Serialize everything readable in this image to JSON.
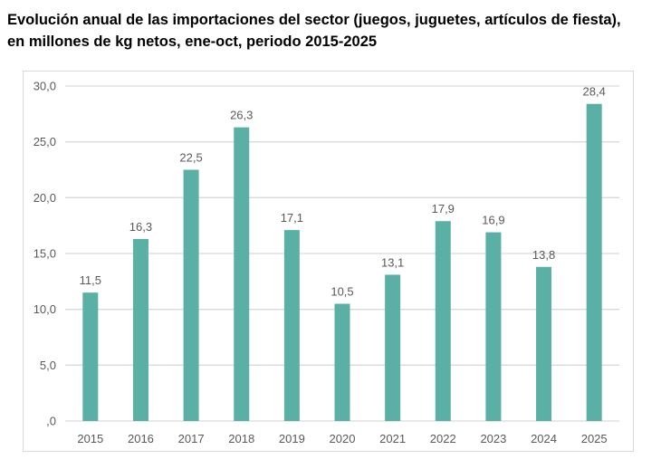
{
  "chart_data": {
    "type": "bar",
    "title_lines": [
      "Evolución anual de las importaciones del sector (juegos, juguetes, artículos de fiesta),",
      "en millones de kg netos, ene-oct, periodo 2015-2025"
    ],
    "categories": [
      "2015",
      "2016",
      "2017",
      "2018",
      "2019",
      "2020",
      "2021",
      "2022",
      "2023",
      "2024",
      "2025"
    ],
    "values": [
      11.5,
      16.3,
      22.5,
      26.3,
      17.1,
      10.5,
      13.1,
      17.9,
      16.9,
      13.8,
      28.4
    ],
    "data_labels": [
      "11,5",
      "16,3",
      "22,5",
      "26,3",
      "17,1",
      "10,5",
      "13,1",
      "17,9",
      "16,9",
      "13,8",
      "28,4"
    ],
    "y_ticks": [
      0,
      5,
      10,
      15,
      20,
      25,
      30
    ],
    "y_tick_labels": [
      ",0",
      "5,0",
      "10,0",
      "15,0",
      "20,0",
      "25,0",
      "30,0"
    ],
    "ylim": [
      0,
      30
    ],
    "grid": true,
    "legend": "none",
    "colors": {
      "bar": "#5BB0A6",
      "grid": "#d9d9d9"
    }
  }
}
